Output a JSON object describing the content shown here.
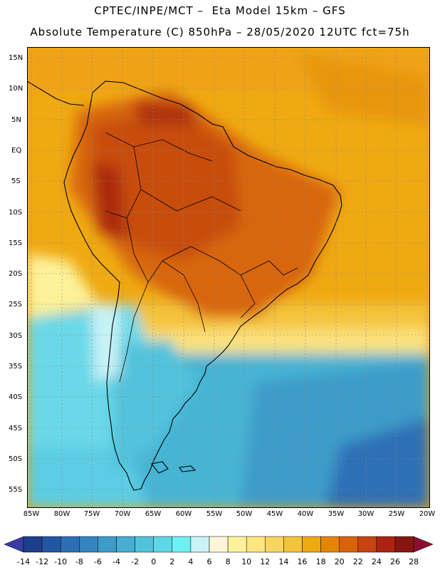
{
  "title_line1": "CPTEC/INPE/MCT –  Eta Model 15km – GFS",
  "title_line2": "Absolute Temperature (C) 850hPa – 28/05/2020 12UTC fct=75h",
  "lat_labels": [
    "15N",
    "10N",
    "5N",
    "EQ",
    "5S",
    "10S",
    "15S",
    "20S",
    "25S",
    "30S",
    "35S",
    "40S",
    "45S",
    "50S",
    "55S"
  ],
  "lon_labels": [
    "85W",
    "80W",
    "75W",
    "70W",
    "65W",
    "60W",
    "55W",
    "50W",
    "45W",
    "40W",
    "35W",
    "30W",
    "25W",
    "20W"
  ],
  "colorbar": {
    "labels": [
      "-14",
      "-12",
      "-10",
      "-8",
      "-6",
      "-4",
      "-2",
      "0",
      "2",
      "4",
      "6",
      "8",
      "10",
      "12",
      "14",
      "16",
      "18",
      "20",
      "22",
      "24",
      "26",
      "28"
    ],
    "colors": [
      "#1b3f8a",
      "#2356a2",
      "#2d6fb6",
      "#3485bf",
      "#3d9bc9",
      "#47aed2",
      "#52c2dc",
      "#5fd6e6",
      "#6ef0f2",
      "#c8f3f7",
      "#fef5d8",
      "#fdf29a",
      "#fbe680",
      "#f7d560",
      "#f4c23c",
      "#eeaa10",
      "#e58506",
      "#d9630a",
      "#c64410",
      "#ab2410",
      "#861510"
    ],
    "under_color": "#3a3aa6",
    "over_color": "#8b1030"
  },
  "map_region": "South America"
}
